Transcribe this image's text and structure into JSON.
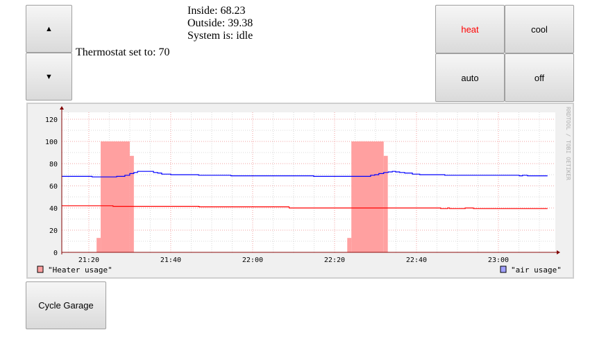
{
  "controls": {
    "up_icon": "▲",
    "down_icon": "▼",
    "setpoint_label": "Thermostat set to: 70"
  },
  "status": {
    "inside": "Inside: 68.23",
    "outside": "Outside: 39.38",
    "system": "System is: idle"
  },
  "modes": [
    {
      "label": "heat",
      "color": "#ff0000"
    },
    {
      "label": "cool",
      "color": "#000000"
    },
    {
      "label": "auto",
      "color": "#000000"
    },
    {
      "label": "off",
      "color": "#000000"
    }
  ],
  "garage": {
    "label": "Cycle Garage"
  },
  "chart_data": {
    "type": "line",
    "watermark": "RRDTOOL / TOBI OETIKER",
    "xlim": [
      "21:13:24",
      "23:13:54"
    ],
    "ylim": [
      0,
      125
    ],
    "yticks": [
      0,
      20,
      40,
      60,
      80,
      100,
      120
    ],
    "ytick_labels": [
      "0",
      "20",
      "40",
      "60",
      "80",
      "100",
      "120"
    ],
    "xticks": [
      "21:20",
      "21:40",
      "22:00",
      "22:20",
      "22:40",
      "23:00"
    ],
    "grid": true,
    "legend": [
      "\"Heater usage\"",
      "\"air usage\""
    ],
    "legend_colors": [
      "#ffa0a0",
      "#a0a0ff"
    ],
    "heater_usage": [
      {
        "start": "21:21:54",
        "end": "21:22:54",
        "value": 13
      },
      {
        "start": "21:22:54",
        "end": "21:30:00",
        "value": 100
      },
      {
        "start": "21:30:00",
        "end": "21:31:00",
        "value": 87
      },
      {
        "start": "22:23:06",
        "end": "22:24:06",
        "value": 13
      },
      {
        "start": "22:24:06",
        "end": "22:32:00",
        "value": 100
      },
      {
        "start": "22:32:00",
        "end": "22:33:00",
        "value": 87
      }
    ],
    "series": [
      {
        "color": "#0000ff",
        "points": [
          [
            "21:13:24",
            68.5
          ],
          [
            "21:20:48",
            68
          ],
          [
            "21:26:48",
            68.5
          ],
          [
            "21:28:48",
            69.5
          ],
          [
            "21:30:00",
            71
          ],
          [
            "21:31:00",
            72
          ],
          [
            "21:31:54",
            73
          ],
          [
            "21:35:48",
            72
          ],
          [
            "21:36:48",
            71.5
          ],
          [
            "21:37:48",
            70.5
          ],
          [
            "21:40:00",
            70
          ],
          [
            "21:46:48",
            69.5
          ],
          [
            "21:54:42",
            69
          ],
          [
            "22:14:54",
            68.5
          ],
          [
            "22:28:48",
            69.5
          ],
          [
            "22:29:48",
            70
          ],
          [
            "22:30:48",
            71
          ],
          [
            "22:32:00",
            72
          ],
          [
            "22:33:06",
            72.5
          ],
          [
            "22:34:06",
            73
          ],
          [
            "22:34:54",
            72.5
          ],
          [
            "22:35:54",
            72
          ],
          [
            "22:37:06",
            71.5
          ],
          [
            "22:39:00",
            70.5
          ],
          [
            "22:40:48",
            70
          ],
          [
            "22:46:54",
            69.5
          ],
          [
            "23:05:06",
            69
          ],
          [
            "23:05:54",
            69.5
          ],
          [
            "23:07:06",
            69
          ],
          [
            "23:12:00",
            69
          ]
        ]
      },
      {
        "color": "#ff0000",
        "points": [
          [
            "21:13:24",
            42
          ],
          [
            "21:25:54",
            41.5
          ],
          [
            "21:46:54",
            41
          ],
          [
            "22:08:54",
            40
          ],
          [
            "22:45:54",
            39.5
          ],
          [
            "22:47:36",
            40
          ],
          [
            "22:48:06",
            39.5
          ],
          [
            "22:51:54",
            40
          ],
          [
            "22:53:54",
            39.5
          ],
          [
            "23:12:00",
            39.5
          ]
        ]
      }
    ]
  }
}
